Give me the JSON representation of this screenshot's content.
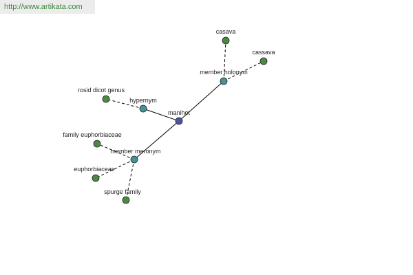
{
  "header": {
    "url": "http://www.artikata.com"
  },
  "nodes": [
    {
      "label": "manihot"
    },
    {
      "label": "hypernym"
    },
    {
      "label": "member holonym"
    },
    {
      "label": "member meronym"
    },
    {
      "label": "casava"
    },
    {
      "label": "cassava"
    },
    {
      "label": "rosid dicot genus"
    },
    {
      "label": "family euphorbiaceae"
    },
    {
      "label": "euphorbiaceae"
    },
    {
      "label": "spurge family"
    }
  ]
}
